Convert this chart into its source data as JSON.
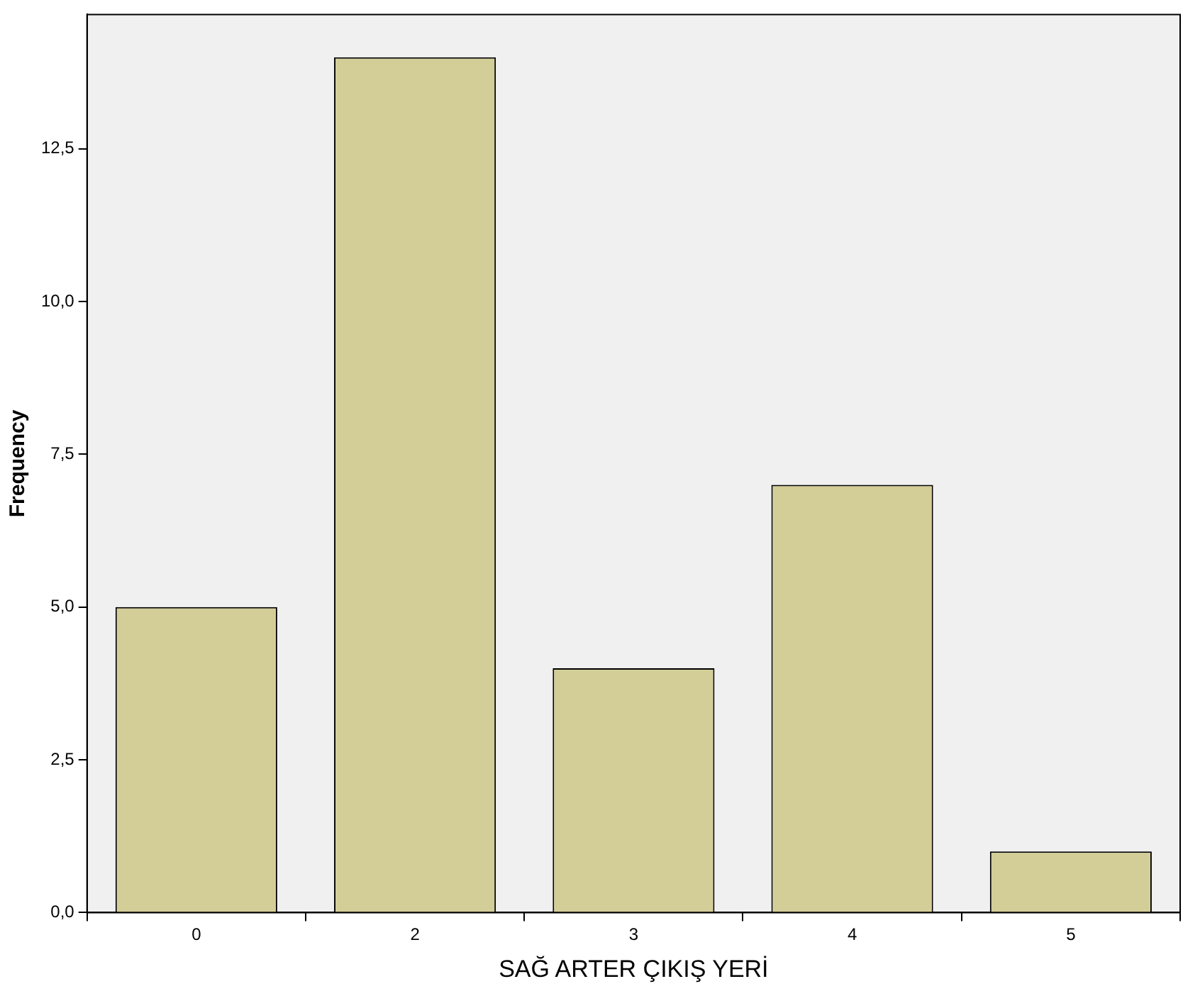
{
  "chart_data": {
    "type": "bar",
    "xlabel": "SAĞ ARTER ÇIKIŞ YERİ",
    "ylabel": "Frequency",
    "categories": [
      "0",
      "2",
      "3",
      "4",
      "5"
    ],
    "values": [
      5,
      14,
      4,
      7,
      1
    ],
    "color": "#d3ce97",
    "ylim": [
      0,
      14.7
    ],
    "yticks": [
      {
        "value": 0,
        "label": "0,0"
      },
      {
        "value": 2.5,
        "label": "2,5"
      },
      {
        "value": 5,
        "label": "5,0"
      },
      {
        "value": 7.5,
        "label": "7,5"
      },
      {
        "value": 10,
        "label": "10,0"
      },
      {
        "value": 12.5,
        "label": "12,5"
      }
    ],
    "grid": false,
    "legend": false
  }
}
